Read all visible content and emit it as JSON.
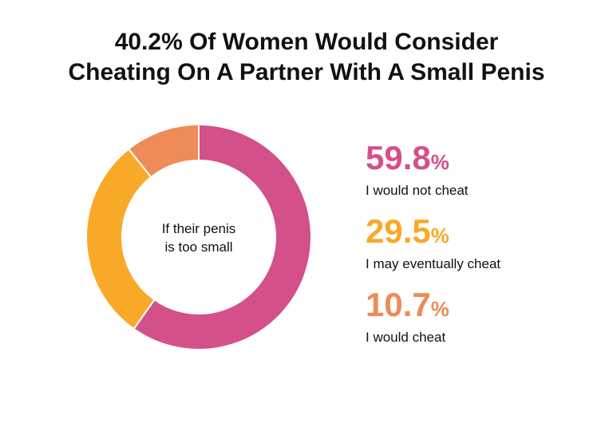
{
  "chart_data": {
    "type": "donut",
    "title": [
      "40.2% Of Women Would Consider",
      "Cheating On A Partner With A Small Penis"
    ],
    "center_label": [
      "If their penis",
      "is too small"
    ],
    "categories": [
      "I would not cheat",
      "I may eventually cheat",
      "I would cheat"
    ],
    "values": [
      59.8,
      29.5,
      10.7
    ],
    "value_labels": [
      "59.8%",
      "29.5%",
      "10.7%"
    ],
    "colors": [
      "#d4508a",
      "#f9a928",
      "#ee8b57"
    ]
  }
}
